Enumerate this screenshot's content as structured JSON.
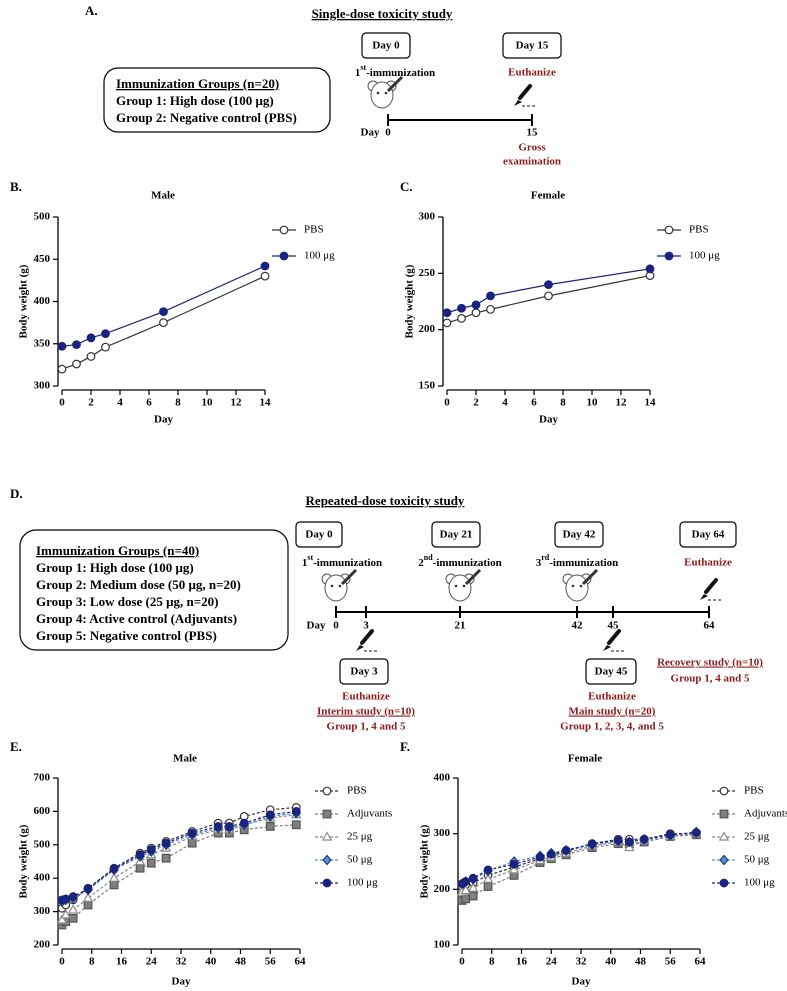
{
  "panel_a": {
    "label": "A.",
    "title": "Single-dose toxicity study",
    "groups_title": "Immunization Groups (n=20)",
    "groups": [
      "Group 1: High dose (100 μg)",
      "Group 2: Negative control (PBS)"
    ],
    "day_boxes": [
      "Day 0",
      "Day 15"
    ],
    "immunization": {
      "num": "1",
      "sup": "st",
      "rest": "-immunization"
    },
    "euthanize": "Euthanize",
    "axis_label": "Day",
    "axis_ticks": [
      "0",
      "15"
    ],
    "gross": [
      "Gross",
      "examination"
    ]
  },
  "panel_d": {
    "label": "D.",
    "title": "Repeated-dose toxicity study",
    "groups_title": "Immunization Groups (n=40)",
    "groups": [
      "Group 1: High dose (100 μg)",
      "Group 2: Medium dose (50 μg, n=20)",
      "Group 3: Low dose (25 μg, n=20)",
      "Group 4: Active control (Adjuvants)",
      "Group 5: Negative control (PBS)"
    ],
    "top_boxes": [
      "Day 0",
      "Day 21",
      "Day 42",
      "Day 64"
    ],
    "immunizations": [
      {
        "num": "1",
        "sup": "st",
        "rest": "-immunization"
      },
      {
        "num": "2",
        "sup": "nd",
        "rest": "-immunization"
      },
      {
        "num": "3",
        "sup": "rd",
        "rest": "-immunization"
      }
    ],
    "euthanize_top": "Euthanize",
    "axis_label": "Day",
    "axis_ticks": [
      "0",
      "3",
      "21",
      "42",
      "45",
      "64"
    ],
    "bottom_boxes": [
      "Day 3",
      "Day 45"
    ],
    "interim": [
      "Euthanize",
      "Interim study (n=10)",
      "Group 1, 4 and 5"
    ],
    "main": [
      "Euthanize",
      "Main study (n=20)",
      "Group 1, 2, 3, 4, and 5"
    ],
    "recovery": [
      "Recovery study (n=10)",
      "Group 1, 4 and 5"
    ]
  },
  "chart_data": [
    {
      "type": "line",
      "panel": "B.",
      "title": "Male",
      "x_label": "Day",
      "y_label": "Body weight (g)",
      "x": [
        0,
        1,
        2,
        3,
        7,
        14
      ],
      "xlim": [
        0,
        14
      ],
      "xticks": [
        0,
        2,
        4,
        6,
        8,
        10,
        12,
        14
      ],
      "ylim": [
        300,
        500
      ],
      "yticks": [
        300,
        350,
        400,
        450,
        500
      ],
      "line_style": "solid",
      "legend": "right",
      "series": [
        {
          "name": "PBS",
          "color": "#333333",
          "marker": "circle-open",
          "values": [
            320,
            326,
            335,
            346,
            375,
            430
          ]
        },
        {
          "name": "100 μg",
          "color": "#1a237e",
          "marker": "circle-filled",
          "values": [
            347,
            349,
            357,
            362,
            388,
            442
          ]
        }
      ]
    },
    {
      "type": "line",
      "panel": "C.",
      "title": "Female",
      "x_label": "Day",
      "y_label": "Body weight (g)",
      "x": [
        0,
        1,
        2,
        3,
        7,
        14
      ],
      "xlim": [
        0,
        14
      ],
      "xticks": [
        0,
        2,
        4,
        6,
        8,
        10,
        12,
        14
      ],
      "ylim": [
        150,
        300
      ],
      "yticks": [
        150,
        200,
        250,
        300
      ],
      "line_style": "solid",
      "legend": "right",
      "series": [
        {
          "name": "PBS",
          "color": "#333333",
          "marker": "circle-open",
          "values": [
            206,
            210,
            215,
            218,
            230,
            248
          ]
        },
        {
          "name": "100 μg",
          "color": "#1a237e",
          "marker": "circle-filled",
          "values": [
            215,
            219,
            222,
            230,
            240,
            254
          ]
        }
      ]
    },
    {
      "type": "line",
      "panel": "E.",
      "title": "Male",
      "x_label": "Day",
      "y_label": "Body weight (g)",
      "x": [
        0,
        1,
        3,
        7,
        14,
        21,
        24,
        28,
        35,
        42,
        45,
        49,
        56,
        63
      ],
      "xlim": [
        0,
        64
      ],
      "xticks": [
        0,
        8,
        16,
        24,
        32,
        40,
        48,
        56,
        64
      ],
      "ylim": [
        200,
        700
      ],
      "yticks": [
        200,
        300,
        400,
        500,
        600,
        700
      ],
      "line_style": "dashed",
      "legend": "right",
      "series": [
        {
          "name": "PBS",
          "color": "#333333",
          "marker": "circle-open",
          "values": [
            310,
            320,
            335,
            370,
            430,
            475,
            490,
            510,
            540,
            565,
            565,
            585,
            605,
            612
          ]
        },
        {
          "name": "Adjuvants",
          "color": "#7f7f7f",
          "marker": "square-filled",
          "values": [
            260,
            270,
            280,
            320,
            380,
            430,
            445,
            460,
            505,
            535,
            535,
            545,
            555,
            560
          ]
        },
        {
          "name": "25 μg",
          "color": "#8a8a8a",
          "marker": "triangle-open",
          "values": [
            275,
            290,
            305,
            340,
            400,
            450,
            470,
            490,
            525,
            545,
            545,
            560,
            580,
            590
          ]
        },
        {
          "name": "50 μg",
          "color": "#5b8fd0",
          "marker": "diamond-filled",
          "values": [
            330,
            335,
            340,
            365,
            425,
            465,
            480,
            500,
            530,
            550,
            550,
            560,
            585,
            595
          ]
        },
        {
          "name": "100 μg",
          "color": "#1a237e",
          "marker": "circle-filled",
          "values": [
            335,
            338,
            345,
            368,
            428,
            470,
            485,
            505,
            535,
            555,
            555,
            565,
            590,
            600
          ]
        }
      ]
    },
    {
      "type": "line",
      "panel": "F.",
      "title": "Female",
      "x_label": "Day",
      "y_label": "Body weight (g)",
      "x": [
        0,
        1,
        3,
        7,
        14,
        21,
        24,
        28,
        35,
        42,
        45,
        49,
        56,
        63
      ],
      "xlim": [
        0,
        64
      ],
      "xticks": [
        0,
        8,
        16,
        24,
        32,
        40,
        48,
        56,
        64
      ],
      "ylim": [
        100,
        400
      ],
      "yticks": [
        100,
        200,
        300,
        400
      ],
      "line_style": "dashed",
      "legend": "right",
      "series": [
        {
          "name": "PBS",
          "color": "#333333",
          "marker": "circle-open",
          "values": [
            205,
            208,
            212,
            225,
            240,
            255,
            260,
            268,
            282,
            290,
            290,
            290,
            300,
            300
          ]
        },
        {
          "name": "Adjuvants",
          "color": "#7f7f7f",
          "marker": "square-filled",
          "values": [
            180,
            183,
            188,
            205,
            225,
            248,
            255,
            262,
            275,
            282,
            282,
            285,
            295,
            298
          ]
        },
        {
          "name": "25 μg",
          "color": "#8a8a8a",
          "marker": "triangle-open",
          "values": [
            195,
            198,
            202,
            218,
            235,
            252,
            258,
            265,
            278,
            285,
            275,
            288,
            295,
            300
          ]
        },
        {
          "name": "50 μg",
          "color": "#5b8fd0",
          "marker": "diamond-filled",
          "values": [
            210,
            214,
            218,
            233,
            250,
            260,
            265,
            270,
            280,
            287,
            285,
            290,
            297,
            303
          ]
        },
        {
          "name": "100 μg",
          "color": "#1a237e",
          "marker": "circle-filled",
          "values": [
            210,
            214,
            220,
            235,
            245,
            258,
            263,
            270,
            282,
            288,
            285,
            290,
            298,
            302
          ]
        }
      ]
    }
  ]
}
